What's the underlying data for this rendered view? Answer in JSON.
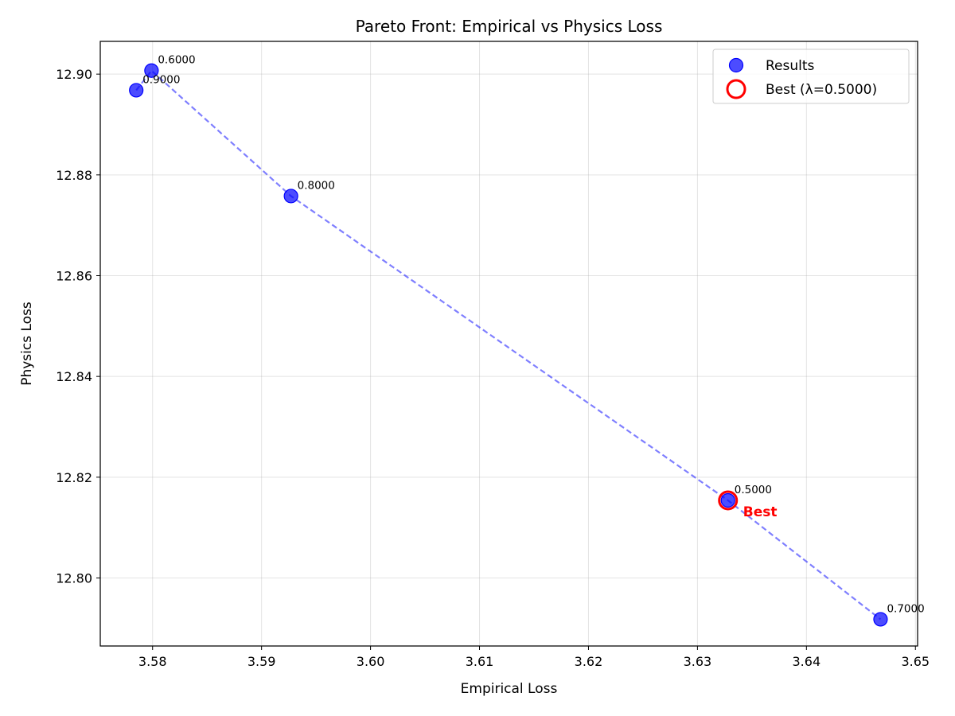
{
  "chart_data": {
    "type": "scatter",
    "title": "Pareto Front: Empirical vs Physics Loss",
    "xlabel": "Empirical Loss",
    "ylabel": "Physics Loss",
    "xlim": [
      3.5752,
      3.6502
    ],
    "ylim": [
      12.7865,
      12.9065
    ],
    "xticks": [
      3.58,
      3.59,
      3.6,
      3.61,
      3.62,
      3.63,
      3.64,
      3.65
    ],
    "xtick_labels": [
      "3.58",
      "3.59",
      "3.60",
      "3.61",
      "3.62",
      "3.63",
      "3.64",
      "3.65"
    ],
    "yticks": [
      12.8,
      12.82,
      12.84,
      12.86,
      12.88,
      12.9
    ],
    "ytick_labels": [
      "12.80",
      "12.82",
      "12.84",
      "12.86",
      "12.88",
      "12.90"
    ],
    "grid": true,
    "legend_position": "top-right",
    "series": [
      {
        "name": "Results",
        "color": "#0000ff",
        "points": [
          {
            "x": 3.5785,
            "y": 12.8968,
            "label": "0.9000"
          },
          {
            "x": 3.5799,
            "y": 12.9007,
            "label": "0.6000"
          },
          {
            "x": 3.5927,
            "y": 12.8758,
            "label": "0.8000"
          },
          {
            "x": 3.6328,
            "y": 12.8154,
            "label": "0.5000"
          },
          {
            "x": 3.6468,
            "y": 12.7918,
            "label": "0.7000"
          }
        ]
      }
    ],
    "pareto_line": {
      "color": "#0000ff",
      "style": "dashed",
      "order": [
        "0.9000",
        "0.6000",
        "0.8000",
        "0.5000",
        "0.7000"
      ]
    },
    "best": {
      "legend_label": "Best (λ=0.5000)",
      "x": 3.6328,
      "y": 12.8154,
      "annotation": "Best",
      "color": "#ff0000"
    }
  }
}
